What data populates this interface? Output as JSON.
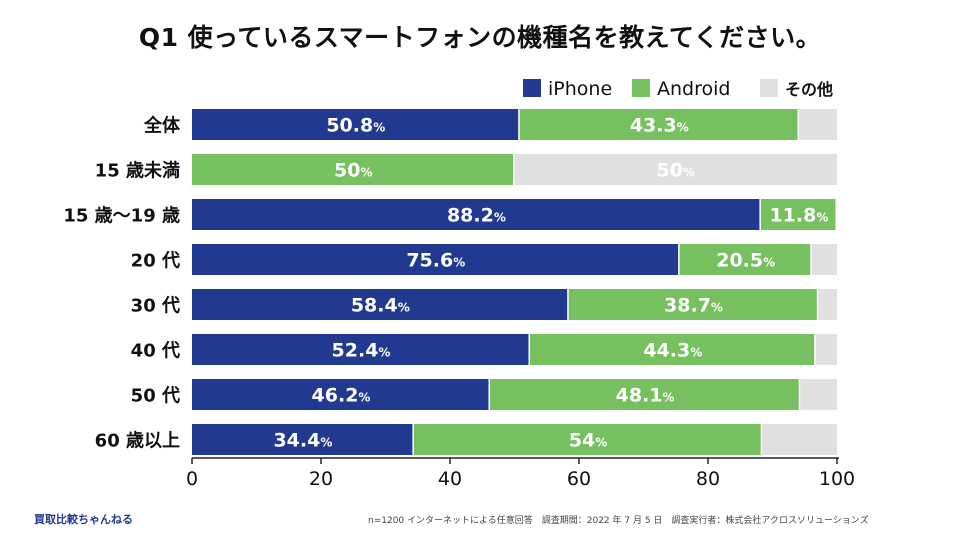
{
  "chart_data": {
    "type": "bar",
    "orientation": "horizontal",
    "stacked": true,
    "title": "Q1 使っているスマートフォンの機種名を教えてください。",
    "categories": [
      "全体",
      "15 歳未満",
      "15 歳〜19 歳",
      "20 代",
      "30 代",
      "40 代",
      "50 代",
      "60 歳以上"
    ],
    "series": [
      {
        "name": "iPhone",
        "color": "#213a8f",
        "values": [
          50.8,
          0,
          88.2,
          75.6,
          58.4,
          52.4,
          46.2,
          34.4
        ],
        "labels": [
          "50.8",
          "",
          "88.2",
          "75.6",
          "58.4",
          "52.4",
          "46.2",
          "34.4"
        ]
      },
      {
        "name": "Android",
        "color": "#77c060",
        "values": [
          43.3,
          50,
          11.8,
          20.5,
          38.7,
          44.3,
          48.1,
          54
        ],
        "labels": [
          "43.3",
          "50",
          "11.8",
          "20.5",
          "38.7",
          "44.3",
          "48.1",
          "54"
        ]
      },
      {
        "name": "その他",
        "color": "#e0e0e0",
        "values": [
          5.9,
          50,
          0,
          3.9,
          2.9,
          3.3,
          5.7,
          11.6
        ],
        "labels": [
          "",
          "50",
          "",
          "",
          "",
          "",
          "",
          ""
        ]
      }
    ],
    "percent_suffix": "%",
    "xlim": [
      0,
      100
    ],
    "xticks": [
      "0",
      "20",
      "40",
      "60",
      "80",
      "100"
    ],
    "legend_position": "top-right"
  },
  "footer": {
    "brand": "買取比較ちゃんねる",
    "note": "n=1200 インターネットによる任意回答　調査期間：2022 年 7 月 5 日　調査実行者：株式会社アクロスソリューションズ"
  }
}
